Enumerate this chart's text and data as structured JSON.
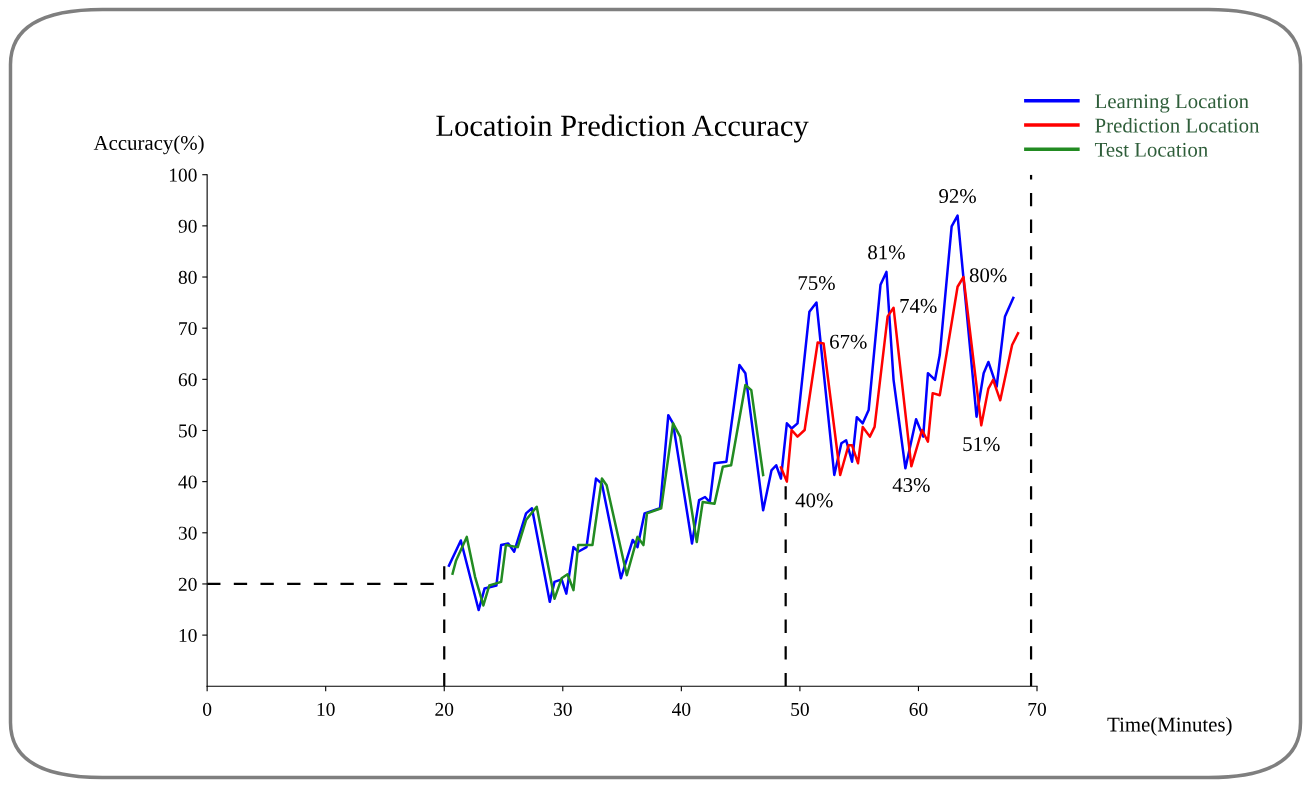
{
  "chart_data": {
    "type": "line",
    "title": "Locatioin Prediction Accuracy",
    "xlabel": "Time(Minutes)",
    "ylabel": "Accuracy(%)",
    "xlim": [
      0,
      70
    ],
    "xticks": [
      0,
      10,
      20,
      30,
      40,
      50,
      60,
      70
    ],
    "ylim": [
      0,
      100
    ],
    "yticks": [
      10,
      20,
      30,
      40,
      50,
      60,
      70,
      80,
      90,
      100
    ],
    "grid": false,
    "legend": "top right",
    "marker": "none",
    "line_style": "solid",
    "series": [
      {
        "name": "Learning Location",
        "color": "#0000ff",
        "x": [
          20.4,
          21.4,
          22.9,
          23.4,
          24.4,
          24.8,
          25.4,
          25.9,
          26.9,
          27.4,
          28.9,
          29.3,
          29.9,
          30.3,
          30.9,
          31.3,
          32.0,
          32.8,
          33.3,
          34.9,
          35.9,
          36.3,
          36.9,
          38.2,
          38.9,
          39.3,
          40.9,
          41.5,
          42.0,
          42.4,
          42.8,
          43.8,
          44.9,
          45.4,
          46.9,
          47.6,
          48.0,
          48.4,
          48.9,
          49.3,
          49.8,
          50.8,
          51.4,
          52.9,
          53.5,
          53.9,
          54.4,
          54.8,
          55.3,
          55.8,
          56.8,
          57.3,
          57.9,
          58.9,
          59.8,
          60.4,
          60.8,
          61.4,
          61.8,
          62.8,
          63.3,
          64.9,
          65.5,
          65.9,
          66.6,
          67.3,
          68.0
        ],
        "values": [
          23.6,
          28.5,
          14.9,
          19.1,
          19.7,
          27.6,
          27.9,
          26.3,
          33.8,
          34.8,
          16.5,
          20.4,
          20.9,
          18.1,
          27.2,
          26.3,
          27.2,
          40.6,
          39.6,
          21.1,
          28.6,
          27.2,
          33.8,
          34.8,
          53.0,
          51.4,
          27.9,
          36.4,
          37.0,
          36.0,
          43.6,
          43.9,
          62.8,
          61.2,
          34.4,
          42.2,
          43.2,
          40.6,
          51.4,
          50.4,
          51.4,
          73.2,
          75,
          41.3,
          47.5,
          48.1,
          43.9,
          52.6,
          51.4,
          54.0,
          78.5,
          81,
          59.9,
          42.6,
          52.2,
          48.8,
          61.2,
          59.9,
          64.8,
          89.9,
          92,
          52.7,
          61.2,
          63.4,
          58.6,
          72.3,
          75.9
        ]
      },
      {
        "name": "Prediction Location",
        "color": "#ff0000",
        "x": [
          48.4,
          48.9,
          49.3,
          49.8,
          50.4,
          51.5,
          52.0,
          53.4,
          54.1,
          54.4,
          54.9,
          55.3,
          55.9,
          56.3,
          57.4,
          57.9,
          59.4,
          60.3,
          60.8,
          61.2,
          61.8,
          63.3,
          63.8,
          65.3,
          65.9,
          66.3,
          66.9,
          67.9,
          68.4
        ],
        "values": [
          42.8,
          40,
          50.1,
          48.8,
          50.1,
          67.2,
          67,
          41.3,
          47.1,
          47.1,
          43.6,
          50.7,
          48.8,
          50.7,
          72.3,
          74,
          43,
          50.1,
          47.8,
          57.3,
          56.9,
          78.1,
          80,
          51,
          58.2,
          59.9,
          55.9,
          66.7,
          69.0
        ]
      },
      {
        "name": "Test Location",
        "color": "#228b22",
        "x": [
          20.7,
          21.0,
          21.9,
          22.6,
          23.3,
          23.8,
          24.8,
          25.2,
          26.2,
          26.9,
          27.8,
          29.3,
          29.9,
          30.4,
          30.9,
          31.3,
          32.5,
          33.3,
          33.7,
          35.4,
          36.3,
          36.8,
          37.1,
          38.3,
          39.3,
          39.9,
          41.3,
          41.8,
          42.8,
          43.5,
          44.2,
          45.4,
          45.9,
          46.9
        ],
        "values": [
          22.0,
          24.6,
          29.2,
          21.4,
          15.8,
          19.7,
          20.4,
          27.6,
          27.2,
          32.5,
          35.1,
          17.1,
          21.1,
          21.9,
          18.8,
          27.6,
          27.6,
          40.6,
          39.3,
          21.7,
          29.2,
          27.6,
          33.8,
          34.8,
          51.4,
          48.8,
          28.2,
          36.0,
          35.7,
          42.9,
          43.2,
          58.9,
          57.9,
          41.3
        ]
      }
    ],
    "ref_lines": [
      {
        "axis": "x",
        "value": 20,
        "color": "#000000",
        "line_style": "dashed"
      },
      {
        "axis": "x",
        "value": 48.8,
        "color": "#000000",
        "line_style": "dashed"
      },
      {
        "axis": "x",
        "value": 69.5,
        "color": "#000000",
        "line_style": "dashed"
      },
      {
        "axis": "y",
        "value": 20,
        "color": "#000000",
        "line_style": "dashed"
      }
    ],
    "annotations": [
      {
        "text": "75%",
        "x": 51.4,
        "y": 75
      },
      {
        "text": "67%",
        "x": 52.0,
        "y": 67
      },
      {
        "text": "81%",
        "x": 57.3,
        "y": 81
      },
      {
        "text": "74%",
        "x": 57.9,
        "y": 74
      },
      {
        "text": "92%",
        "x": 63.3,
        "y": 92
      },
      {
        "text": "80%",
        "x": 63.8,
        "y": 80
      },
      {
        "text": "40%",
        "x": 48.9,
        "y": 40
      },
      {
        "text": "43%",
        "x": 59.4,
        "y": 43
      },
      {
        "text": "51%",
        "x": 65.3,
        "y": 51
      }
    ]
  }
}
